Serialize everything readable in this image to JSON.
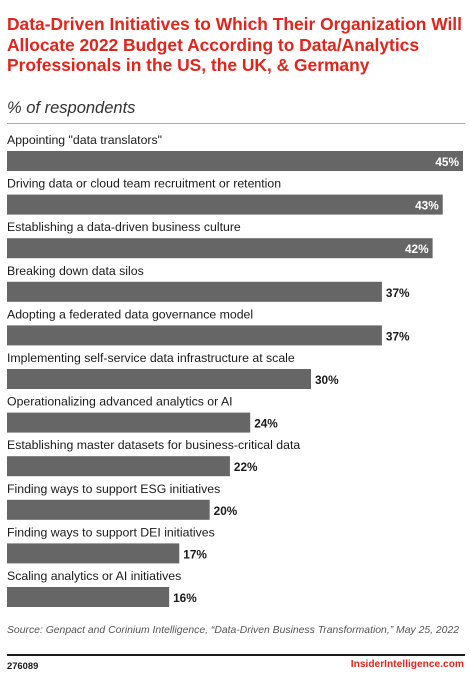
{
  "chart_data": {
    "type": "bar",
    "orientation": "horizontal",
    "title": "Data-Driven Initiatives to Which Their Organization Will Allocate 2022 Budget According to Data/Analytics Professionals in the US, the UK, & Germany",
    "subtitle": "% of respondents",
    "categories": [
      "Appointing \"data translators\"",
      "Driving data or cloud team recruitment or retention",
      "Establishing a data-driven business culture",
      "Breaking down data silos",
      "Adopting a federated data governance model",
      "Implementing self-service data infrastructure at scale",
      "Operationalizing advanced analytics or AI",
      "Establishing master datasets for business-critical data",
      "Finding ways to support ESG initiatives",
      "Finding ways to support DEI initiatives",
      "Scaling analytics or AI initiatives"
    ],
    "values": [
      45,
      43,
      42,
      37,
      37,
      30,
      24,
      22,
      20,
      17,
      16
    ],
    "value_labels": [
      "45%",
      "43%",
      "42%",
      "37%",
      "37%",
      "30%",
      "24%",
      "22%",
      "20%",
      "17%",
      "16%"
    ],
    "xlim": [
      0,
      45
    ],
    "bar_color": "#666666",
    "grid": false,
    "legend": "none"
  },
  "footer": {
    "source": "Source: Genpact and Corinium Intelligence, “Data-Driven Business Transformation,” May 25, 2022",
    "chart_id": "276089",
    "brand": "InsiderIntelligence.com"
  },
  "colors": {
    "title": "#e1251b",
    "brand": "#e1251b",
    "bar": "#666666"
  }
}
